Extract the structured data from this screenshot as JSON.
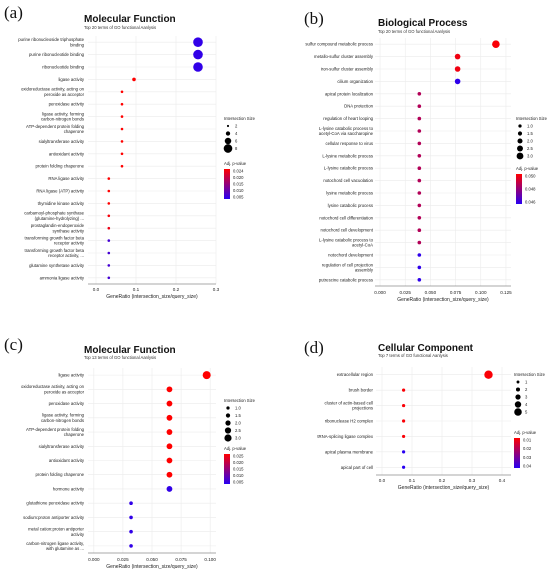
{
  "chart_data": [
    {
      "type": "scatter",
      "panel_label": "(a)",
      "title": "Molecular Function",
      "subtitle": "Top 20 terms of GO functional Aanlysis",
      "xlabel": "GeneRatio (intersection_size/query_size)",
      "xlim": [
        -0.02,
        0.3
      ],
      "xticks": [
        "0.0",
        "0.1",
        "0.2",
        "0.3"
      ],
      "size_legend_title": "Intersection Size",
      "size_legend": [
        "2",
        "4",
        "6",
        "8"
      ],
      "size_range": [
        2,
        8
      ],
      "color_legend_title": "Adj. p-value",
      "color_ticks": [
        "0.024",
        "0.020",
        "0.015",
        "0.010",
        "0.005"
      ],
      "color_range": [
        0.003,
        0.026
      ],
      "points": [
        {
          "term": "purine ribonucleoside triphosphate binding",
          "x": 0.255,
          "size": 8,
          "p": 0.004
        },
        {
          "term": "purine ribonucleotide binding",
          "x": 0.255,
          "size": 8,
          "p": 0.004
        },
        {
          "term": "ribonucleotide binding",
          "x": 0.255,
          "size": 8,
          "p": 0.004
        },
        {
          "term": "ligase activity",
          "x": 0.095,
          "size": 3,
          "p": 0.026
        },
        {
          "term": "oxidoreductase activity, acting on peroxide as acceptor",
          "x": 0.065,
          "size": 2,
          "p": 0.026
        },
        {
          "term": "peroxidase activity",
          "x": 0.065,
          "size": 2,
          "p": 0.026
        },
        {
          "term": "ligase activity, forming carbon-nitrogen bonds",
          "x": 0.065,
          "size": 2,
          "p": 0.026
        },
        {
          "term": "ATP-dependent protein folding chaperone",
          "x": 0.065,
          "size": 2,
          "p": 0.026
        },
        {
          "term": "sialyltransferase activity",
          "x": 0.065,
          "size": 2,
          "p": 0.026
        },
        {
          "term": "antioxidant activity",
          "x": 0.065,
          "size": 2,
          "p": 0.026
        },
        {
          "term": "protein folding chaperone",
          "x": 0.065,
          "size": 2,
          "p": 0.026
        },
        {
          "term": "RNA ligase activity",
          "x": 0.032,
          "size": 1,
          "p": 0.026
        },
        {
          "term": "RNA ligase (ATP) activity",
          "x": 0.032,
          "size": 1,
          "p": 0.026
        },
        {
          "term": "thymidine kinase activity",
          "x": 0.032,
          "size": 1,
          "p": 0.026
        },
        {
          "term": "carbamoyl-phosphate synthase (glutamine-hydrolyzing) ...",
          "x": 0.032,
          "size": 1,
          "p": 0.025
        },
        {
          "term": "prostaglandin-endoperoxide synthase activity",
          "x": 0.032,
          "size": 1,
          "p": 0.024
        },
        {
          "term": "transforming growth factor beta receptor activity",
          "x": 0.032,
          "size": 1,
          "p": 0.006
        },
        {
          "term": "transforming growth factor beta receptor activity, ...",
          "x": 0.032,
          "size": 1,
          "p": 0.006
        },
        {
          "term": "glutamine synthetase activity",
          "x": 0.032,
          "size": 1,
          "p": 0.006
        },
        {
          "term": "ammonia ligase activity",
          "x": 0.032,
          "size": 1,
          "p": 0.006
        }
      ]
    },
    {
      "type": "scatter",
      "panel_label": "(b)",
      "title": "Biological Process",
      "subtitle": "Top 20 terms of GO functional Aanlysis",
      "xlabel": "GeneRatio (intersection_size/query_size)",
      "xlim": [
        -0.005,
        0.13
      ],
      "xticks": [
        "0.000",
        "0.025",
        "0.050",
        "0.075",
        "0.100",
        "0.125"
      ],
      "size_legend_title": "Intersection Size",
      "size_legend": [
        "1.0",
        "1.5",
        "2.0",
        "2.5",
        "3.0"
      ],
      "size_range": [
        1,
        3
      ],
      "color_legend_title": "Adj. p-value",
      "color_ticks": [
        "0.050",
        "0.048",
        "0.046"
      ],
      "color_range": [
        0.0445,
        0.0515
      ],
      "points": [
        {
          "term": "sulfur compound metabolic process",
          "x": 0.115,
          "size": 3,
          "p": 0.0513
        },
        {
          "term": "metallo-sulfur cluster assembly",
          "x": 0.077,
          "size": 2,
          "p": 0.051
        },
        {
          "term": "iron-sulfur cluster assembly",
          "x": 0.077,
          "size": 2,
          "p": 0.051
        },
        {
          "term": "cilium organization",
          "x": 0.077,
          "size": 2,
          "p": 0.0447
        },
        {
          "term": "apical protein localization",
          "x": 0.039,
          "size": 1,
          "p": 0.049
        },
        {
          "term": "DNA protection",
          "x": 0.039,
          "size": 1,
          "p": 0.049
        },
        {
          "term": "regulation of heart looping",
          "x": 0.039,
          "size": 1,
          "p": 0.049
        },
        {
          "term": "L-lysine catabolic process to acetyl-CoA via saccharopine",
          "x": 0.039,
          "size": 1,
          "p": 0.049
        },
        {
          "term": "cellular response to virus",
          "x": 0.039,
          "size": 1,
          "p": 0.049
        },
        {
          "term": "L-lysine metabolic process",
          "x": 0.039,
          "size": 1,
          "p": 0.049
        },
        {
          "term": "L-lysine catabolic process",
          "x": 0.039,
          "size": 1,
          "p": 0.049
        },
        {
          "term": "notochord cell vacuolation",
          "x": 0.039,
          "size": 1,
          "p": 0.049
        },
        {
          "term": "lysine metabolic process",
          "x": 0.039,
          "size": 1,
          "p": 0.049
        },
        {
          "term": "lysine catabolic process",
          "x": 0.039,
          "size": 1,
          "p": 0.049
        },
        {
          "term": "notochord cell differentiation",
          "x": 0.039,
          "size": 1,
          "p": 0.049
        },
        {
          "term": "notochord cell development",
          "x": 0.039,
          "size": 1,
          "p": 0.049
        },
        {
          "term": "L-lysine catabolic process to acetyl-CoA",
          "x": 0.039,
          "size": 1,
          "p": 0.049
        },
        {
          "term": "notochord development",
          "x": 0.039,
          "size": 1,
          "p": 0.0447
        },
        {
          "term": "regulation of cell projection assembly",
          "x": 0.039,
          "size": 1,
          "p": 0.0447
        },
        {
          "term": "putrescine catabolic process",
          "x": 0.039,
          "size": 1,
          "p": 0.0447
        }
      ]
    },
    {
      "type": "scatter",
      "panel_label": "(c)",
      "title": "Molecular Function",
      "subtitle": "Top 13 terms of GO functional Aanlysis",
      "xlabel": "GeneRatio (intersection_size/query_size)",
      "xlim": [
        -0.005,
        0.105
      ],
      "xticks": [
        "0.000",
        "0.025",
        "0.050",
        "0.075",
        "0.100"
      ],
      "size_legend_title": "Intersection Size",
      "size_legend": [
        "1.0",
        "1.5",
        "2.0",
        "2.5",
        "3.0"
      ],
      "size_range": [
        1,
        3
      ],
      "color_legend_title": "Adj. p-value",
      "color_ticks": [
        "0.025",
        "0.020",
        "0.015",
        "0.010",
        "0.005"
      ],
      "color_range": [
        0.003,
        0.027
      ],
      "points": [
        {
          "term": "ligase activity",
          "x": 0.097,
          "size": 3,
          "p": 0.027
        },
        {
          "term": "oxidoreductase activity, acting on peroxide as acceptor",
          "x": 0.065,
          "size": 2,
          "p": 0.027
        },
        {
          "term": "peroxidase activity",
          "x": 0.065,
          "size": 2,
          "p": 0.027
        },
        {
          "term": "ligase activity, forming carbon-nitrogen bonds",
          "x": 0.065,
          "size": 2,
          "p": 0.027
        },
        {
          "term": "ATP-dependent protein folding chaperone",
          "x": 0.065,
          "size": 2,
          "p": 0.027
        },
        {
          "term": "sialyltransferase activity",
          "x": 0.065,
          "size": 2,
          "p": 0.027
        },
        {
          "term": "antioxidant activity",
          "x": 0.065,
          "size": 2,
          "p": 0.027
        },
        {
          "term": "protein folding chaperone",
          "x": 0.065,
          "size": 2,
          "p": 0.027
        },
        {
          "term": "hormone activity",
          "x": 0.065,
          "size": 2,
          "p": 0.004
        },
        {
          "term": "glutathione peroxidase activity",
          "x": 0.032,
          "size": 1,
          "p": 0.004
        },
        {
          "term": "sodium:proton antiporter activity",
          "x": 0.032,
          "size": 1,
          "p": 0.004
        },
        {
          "term": "metal cation:proton antiporter activity",
          "x": 0.032,
          "size": 1,
          "p": 0.004
        },
        {
          "term": "carbon-nitrogen ligase activity, with glutamine as ...",
          "x": 0.032,
          "size": 1,
          "p": 0.004
        }
      ]
    },
    {
      "type": "scatter",
      "panel_label": "(d)",
      "title": "Cellular Component",
      "subtitle": "Top 7 terms of GO functional Aanlysis",
      "xlabel": "GeneRatio (intersection_size/query_size)",
      "xlim": [
        -0.02,
        0.43
      ],
      "xticks": [
        "0.0",
        "0.1",
        "0.2",
        "0.3",
        "0.4"
      ],
      "size_legend_title": "Intersection Size",
      "size_legend": [
        "1",
        "2",
        "3",
        "4",
        "5"
      ],
      "size_range": [
        1,
        5
      ],
      "color_legend_title": "Adj. p-value",
      "color_ticks": [
        "0.01",
        "0.02",
        "0.03",
        "0.04"
      ],
      "color_range": [
        0.045,
        0.005
      ],
      "points": [
        {
          "term": "extracellular region",
          "x": 0.355,
          "size": 5,
          "p": 0.006
        },
        {
          "term": "brush border",
          "x": 0.072,
          "size": 1,
          "p": 0.006
        },
        {
          "term": "cluster of actin-based cell projections",
          "x": 0.072,
          "size": 1,
          "p": 0.006
        },
        {
          "term": "ribonuclease H2 complex",
          "x": 0.072,
          "size": 1,
          "p": 0.006
        },
        {
          "term": "tRNA-splicing ligase complex",
          "x": 0.072,
          "size": 1,
          "p": 0.006
        },
        {
          "term": "apical plasma membrane",
          "x": 0.072,
          "size": 1,
          "p": 0.045
        },
        {
          "term": "apical part of cell",
          "x": 0.072,
          "size": 1,
          "p": 0.045
        }
      ]
    }
  ]
}
